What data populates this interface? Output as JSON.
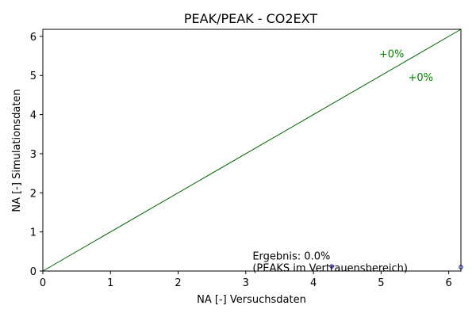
{
  "chart_data": {
    "type": "scatter",
    "title": "PEAK/PEAK - CO2EXT",
    "xlabel": "NA [-] Versuchsdaten",
    "ylabel": "NA [-] Simulationsdaten",
    "xlim": [
      0,
      6.18
    ],
    "ylim": [
      0,
      6.18
    ],
    "xticks": [
      0,
      1,
      2,
      3,
      4,
      5,
      6
    ],
    "yticks": [
      0,
      1,
      2,
      3,
      4,
      5,
      6
    ],
    "grid": false,
    "colors": {
      "reference_line": "#006400",
      "points": "#0000cc",
      "annotation": "#008000"
    },
    "reference_line": {
      "from": [
        0,
        0
      ],
      "to": [
        6.18,
        6.18
      ]
    },
    "points": [
      {
        "x": 4.27,
        "y": 0.12
      },
      {
        "x": 6.18,
        "y": 0.1
      }
    ],
    "annotations": [
      {
        "text": "+0%",
        "x": 4.97,
        "y": 5.56
      },
      {
        "text": "+0%",
        "x": 5.4,
        "y": 4.96
      }
    ],
    "result_note": {
      "line1": "Ergebnis: 0.0%",
      "line2": "(PEAKS im Vertrauensbereich)",
      "x": 3.1,
      "y": 0.4
    }
  }
}
